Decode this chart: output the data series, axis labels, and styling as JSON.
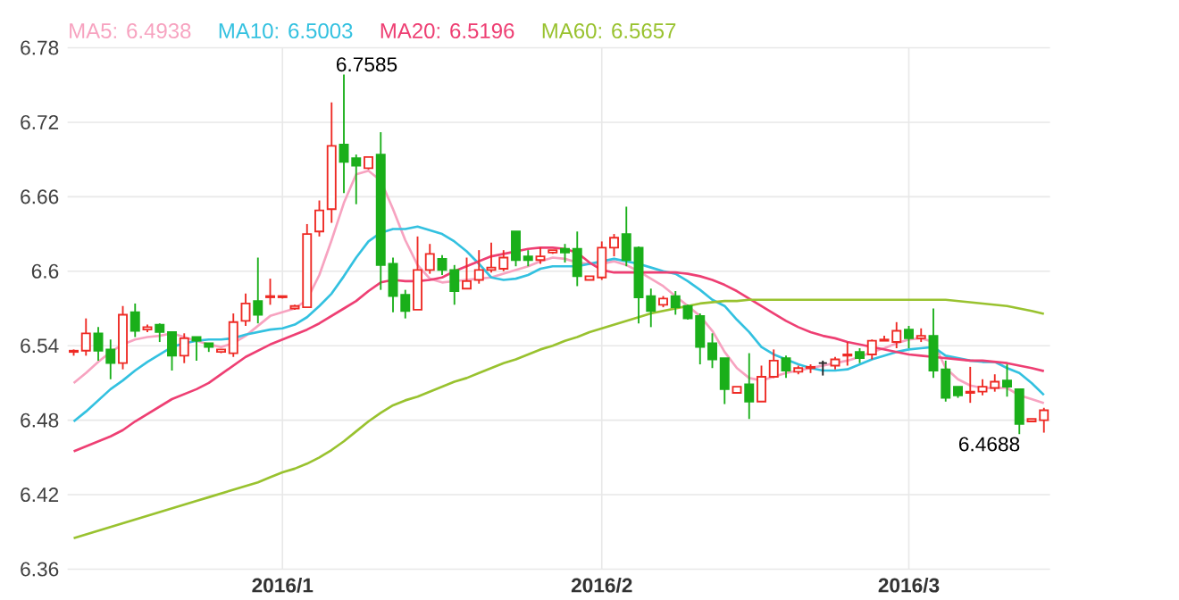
{
  "chart_data": {
    "type": "candlestick",
    "categories": [
      null,
      null,
      null,
      null,
      null,
      null,
      null,
      null,
      null,
      null,
      null,
      null,
      null,
      null,
      null,
      null,
      null,
      "2016/1",
      null,
      null,
      null,
      null,
      null,
      null,
      null,
      null,
      null,
      null,
      null,
      null,
      null,
      null,
      null,
      null,
      null,
      null,
      null,
      null,
      null,
      null,
      null,
      null,
      null,
      "2016/2",
      null,
      null,
      null,
      null,
      null,
      null,
      null,
      null,
      null,
      null,
      null,
      null,
      null,
      null,
      null,
      null,
      null,
      null,
      null,
      null,
      null,
      null,
      null,
      null,
      "2016/3",
      null,
      null,
      null,
      null,
      null,
      null,
      null,
      null,
      null,
      null,
      null
    ],
    "ohlc": [
      [
        6.535,
        6.537,
        6.532,
        6.536
      ],
      [
        6.536,
        6.562,
        6.532,
        6.55
      ],
      [
        6.55,
        6.555,
        6.528,
        6.536
      ],
      [
        6.537,
        6.545,
        6.513,
        6.526
      ],
      [
        6.526,
        6.572,
        6.521,
        6.565
      ],
      [
        6.567,
        6.574,
        6.547,
        6.552
      ],
      [
        6.553,
        6.557,
        6.551,
        6.555
      ],
      [
        6.557,
        6.558,
        6.543,
        6.551
      ],
      [
        6.551,
        6.551,
        6.52,
        6.532
      ],
      [
        6.532,
        6.55,
        6.526,
        6.546
      ],
      [
        6.547,
        6.547,
        6.528,
        6.544
      ],
      [
        6.542,
        6.542,
        6.535,
        6.539
      ],
      [
        6.535,
        6.537,
        6.534,
        6.537
      ],
      [
        6.534,
        6.566,
        6.531,
        6.559
      ],
      [
        6.56,
        6.582,
        6.556,
        6.574
      ],
      [
        6.576,
        6.611,
        6.558,
        6.565
      ],
      [
        6.579,
        6.594,
        6.573,
        6.58
      ],
      [
        6.579,
        6.58,
        6.578,
        6.58
      ],
      [
        6.57,
        6.573,
        6.569,
        6.572
      ],
      [
        6.571,
        6.638,
        6.571,
        6.63
      ],
      [
        6.632,
        6.657,
        6.628,
        6.649
      ],
      [
        6.65,
        6.736,
        6.639,
        6.701
      ],
      [
        6.702,
        6.7585,
        6.663,
        6.688
      ],
      [
        6.691,
        6.694,
        6.654,
        6.685
      ],
      [
        6.683,
        6.692,
        6.682,
        6.692
      ],
      [
        6.694,
        6.712,
        6.585,
        6.605
      ],
      [
        6.606,
        6.611,
        6.567,
        6.58
      ],
      [
        6.581,
        6.585,
        6.562,
        6.568
      ],
      [
        6.569,
        6.628,
        6.569,
        6.601
      ],
      [
        6.601,
        6.622,
        6.598,
        6.614
      ],
      [
        6.61,
        6.613,
        6.597,
        6.601
      ],
      [
        6.601,
        6.605,
        6.573,
        6.584
      ],
      [
        6.586,
        6.611,
        6.586,
        6.592
      ],
      [
        6.593,
        6.617,
        6.59,
        6.601
      ],
      [
        6.601,
        6.623,
        6.599,
        6.603
      ],
      [
        6.602,
        6.617,
        6.6,
        6.611
      ],
      [
        6.632,
        6.632,
        6.604,
        6.609
      ],
      [
        6.612,
        6.617,
        6.604,
        6.609
      ],
      [
        6.609,
        6.619,
        6.606,
        6.612
      ],
      [
        6.615,
        6.617,
        6.614,
        6.617
      ],
      [
        6.618,
        6.622,
        6.607,
        6.615
      ],
      [
        6.618,
        6.632,
        6.588,
        6.596
      ],
      [
        6.593,
        6.596,
        6.593,
        6.596
      ],
      [
        6.595,
        6.624,
        6.593,
        6.619
      ],
      [
        6.619,
        6.63,
        6.612,
        6.627
      ],
      [
        6.63,
        6.652,
        6.604,
        6.609
      ],
      [
        6.619,
        6.62,
        6.558,
        6.579
      ],
      [
        6.58,
        6.586,
        6.555,
        6.568
      ],
      [
        6.573,
        6.58,
        6.571,
        6.578
      ],
      [
        6.58,
        6.584,
        6.565,
        6.571
      ],
      [
        6.572,
        6.573,
        6.561,
        6.562
      ],
      [
        6.564,
        6.566,
        6.525,
        6.539
      ],
      [
        6.542,
        6.55,
        6.522,
        6.529
      ],
      [
        6.53,
        6.53,
        6.493,
        6.505
      ],
      [
        6.502,
        6.507,
        6.502,
        6.507
      ],
      [
        6.509,
        6.534,
        6.481,
        6.495
      ],
      [
        6.495,
        6.524,
        6.495,
        6.515
      ],
      [
        6.515,
        6.537,
        6.514,
        6.528
      ],
      [
        6.53,
        6.532,
        6.514,
        6.52
      ],
      [
        6.519,
        6.524,
        6.517,
        6.522
      ],
      [
        6.522,
        6.525,
        6.518,
        6.523
      ],
      [
        6.526,
        6.528,
        6.516,
        6.526
      ],
      [
        6.524,
        6.531,
        6.521,
        6.529
      ],
      [
        6.532,
        6.543,
        6.524,
        6.533
      ],
      [
        6.535,
        6.538,
        6.526,
        6.53
      ],
      [
        6.533,
        6.545,
        6.529,
        6.544
      ],
      [
        6.544,
        6.548,
        6.544,
        6.545
      ],
      [
        6.543,
        6.559,
        6.538,
        6.552
      ],
      [
        6.553,
        6.556,
        6.538,
        6.546
      ],
      [
        6.546,
        6.554,
        6.543,
        6.548
      ],
      [
        6.548,
        6.57,
        6.514,
        6.52
      ],
      [
        6.521,
        6.528,
        6.495,
        6.498
      ],
      [
        6.507,
        6.507,
        6.498,
        6.5
      ],
      [
        6.502,
        6.523,
        6.494,
        6.503
      ],
      [
        6.503,
        6.513,
        6.5,
        6.507
      ],
      [
        6.506,
        6.517,
        6.503,
        6.511
      ],
      [
        6.512,
        6.525,
        6.499,
        6.507
      ],
      [
        6.505,
        6.505,
        6.4688,
        6.477
      ],
      [
        6.479,
        6.481,
        6.479,
        6.481
      ],
      [
        6.48,
        6.49,
        6.47,
        6.488
      ]
    ],
    "colors": [
      "#ee2a24",
      "#ee2a24",
      "#1aaf1a",
      "#1aaf1a",
      "#ee2a24",
      "#1aaf1a",
      "#ee2a24",
      "#1aaf1a",
      "#1aaf1a",
      "#ee2a24",
      "#1aaf1a",
      "#1aaf1a",
      "#ee2a24",
      "#ee2a24",
      "#ee2a24",
      "#1aaf1a",
      "#ee2a24",
      "#ee2a24",
      "#ee2a24",
      "#ee2a24",
      "#ee2a24",
      "#ee2a24",
      "#1aaf1a",
      "#1aaf1a",
      "#ee2a24",
      "#1aaf1a",
      "#1aaf1a",
      "#1aaf1a",
      "#ee2a24",
      "#ee2a24",
      "#1aaf1a",
      "#1aaf1a",
      "#ee2a24",
      "#ee2a24",
      "#ee2a24",
      "#ee2a24",
      "#1aaf1a",
      "#1aaf1a",
      "#ee2a24",
      "#ee2a24",
      "#1aaf1a",
      "#1aaf1a",
      "#ee2a24",
      "#ee2a24",
      "#ee2a24",
      "#1aaf1a",
      "#1aaf1a",
      "#1aaf1a",
      "#ee2a24",
      "#1aaf1a",
      "#1aaf1a",
      "#1aaf1a",
      "#1aaf1a",
      "#1aaf1a",
      "#ee2a24",
      "#1aaf1a",
      "#ee2a24",
      "#ee2a24",
      "#1aaf1a",
      "#ee2a24",
      "#ee2a24",
      "#222222",
      "#ee2a24",
      "#ee2a24",
      "#1aaf1a",
      "#ee2a24",
      "#ee2a24",
      "#ee2a24",
      "#1aaf1a",
      "#ee2a24",
      "#1aaf1a",
      "#1aaf1a",
      "#1aaf1a",
      "#ee2a24",
      "#ee2a24",
      "#ee2a24",
      "#1aaf1a",
      "#1aaf1a",
      "#ee2a24",
      "#ee2a24"
    ],
    "series": [
      {
        "name": "MA5: 6.4938",
        "type": "line",
        "color": "#f7a3c0",
        "values": [
          6.51,
          6.518,
          6.527,
          6.535,
          6.541,
          6.545,
          6.547,
          6.548,
          6.55,
          6.547,
          6.544,
          6.541,
          6.539,
          6.542,
          6.548,
          6.556,
          6.564,
          6.567,
          6.57,
          6.577,
          6.597,
          6.625,
          6.655,
          6.678,
          6.681,
          6.673,
          6.65,
          6.625,
          6.605,
          6.594,
          6.591,
          6.592,
          6.593,
          6.594,
          6.595,
          6.598,
          6.601,
          6.604,
          6.608,
          6.611,
          6.61,
          6.607,
          6.606,
          6.606,
          6.608,
          6.605,
          6.6,
          6.594,
          6.588,
          6.58,
          6.572,
          6.564,
          6.552,
          6.535,
          6.522,
          6.514,
          6.512,
          6.515,
          6.518,
          6.52,
          6.522,
          6.524,
          6.526,
          6.528,
          6.531,
          6.535,
          6.538,
          6.542,
          6.545,
          6.546,
          6.543,
          6.522,
          6.513,
          6.508,
          6.506,
          6.506,
          6.506,
          6.5,
          6.497,
          6.4938
        ]
      },
      {
        "name": "MA10: 6.5003",
        "type": "line",
        "color": "#33c1e0",
        "values": [
          6.479,
          6.487,
          6.496,
          6.505,
          6.512,
          6.52,
          6.527,
          6.533,
          6.539,
          6.542,
          6.544,
          6.545,
          6.545,
          6.546,
          6.549,
          6.551,
          6.553,
          6.554,
          6.557,
          6.563,
          6.572,
          6.582,
          6.596,
          6.611,
          6.624,
          6.631,
          6.634,
          6.634,
          6.636,
          6.633,
          6.63,
          6.624,
          6.616,
          6.606,
          6.595,
          6.593,
          6.594,
          6.597,
          6.602,
          6.604,
          6.604,
          6.604,
          6.606,
          6.608,
          6.61,
          6.608,
          6.606,
          6.603,
          6.6,
          6.598,
          6.592,
          6.585,
          6.577,
          6.572,
          6.561,
          6.551,
          6.539,
          6.533,
          6.529,
          6.525,
          6.522,
          6.52,
          6.52,
          6.521,
          6.525,
          6.529,
          6.532,
          6.535,
          6.537,
          6.538,
          6.539,
          6.532,
          6.53,
          6.528,
          6.527,
          6.527,
          6.522,
          6.518,
          6.51,
          6.5003
        ]
      },
      {
        "name": "MA20: 6.5196",
        "type": "line",
        "color": "#ee3f73",
        "values": [
          6.455,
          6.459,
          6.463,
          6.467,
          6.472,
          6.479,
          6.485,
          6.491,
          6.497,
          6.501,
          6.505,
          6.51,
          6.517,
          6.524,
          6.531,
          6.536,
          6.541,
          6.545,
          6.549,
          6.553,
          6.558,
          6.564,
          6.57,
          6.576,
          6.584,
          6.591,
          6.593,
          6.592,
          6.592,
          6.593,
          6.595,
          6.6,
          6.604,
          6.608,
          6.612,
          6.614,
          6.616,
          6.618,
          6.619,
          6.619,
          6.618,
          6.615,
          6.607,
          6.601,
          6.599,
          6.599,
          6.599,
          6.599,
          6.599,
          6.599,
          6.598,
          6.596,
          6.593,
          6.589,
          6.584,
          6.578,
          6.572,
          6.566,
          6.56,
          6.555,
          6.551,
          6.548,
          6.546,
          6.543,
          6.541,
          6.539,
          6.537,
          6.535,
          6.533,
          6.532,
          6.531,
          6.53,
          6.529,
          6.528,
          6.528,
          6.527,
          6.526,
          6.524,
          6.522,
          6.5196
        ]
      },
      {
        "name": "MA60: 6.5657",
        "type": "line",
        "color": "#99c22f",
        "values": [
          6.385,
          6.388,
          6.391,
          6.394,
          6.397,
          6.4,
          6.403,
          6.406,
          6.409,
          6.412,
          6.415,
          6.418,
          6.421,
          6.424,
          6.427,
          6.43,
          6.434,
          6.438,
          6.441,
          6.445,
          6.45,
          6.456,
          6.463,
          6.471,
          6.479,
          6.486,
          6.492,
          6.496,
          6.499,
          6.503,
          6.507,
          6.511,
          6.514,
          6.518,
          6.522,
          6.526,
          6.529,
          6.533,
          6.537,
          6.54,
          6.544,
          6.547,
          6.551,
          6.554,
          6.557,
          6.56,
          6.563,
          6.566,
          6.568,
          6.57,
          6.572,
          6.574,
          6.575,
          6.576,
          6.576,
          6.577,
          6.577,
          6.577,
          6.577,
          6.577,
          6.577,
          6.577,
          6.577,
          6.577,
          6.577,
          6.577,
          6.577,
          6.577,
          6.577,
          6.577,
          6.577,
          6.577,
          6.576,
          6.575,
          6.574,
          6.573,
          6.572,
          6.57,
          6.568,
          6.5657
        ]
      }
    ],
    "ylim": [
      6.36,
      6.78
    ],
    "yticks": [
      6.36,
      6.42,
      6.48,
      6.54,
      6.6,
      6.66,
      6.72,
      6.78
    ],
    "grid": true,
    "legend": "top left",
    "annotations": [
      "6.7585",
      "6.4688"
    ]
  }
}
